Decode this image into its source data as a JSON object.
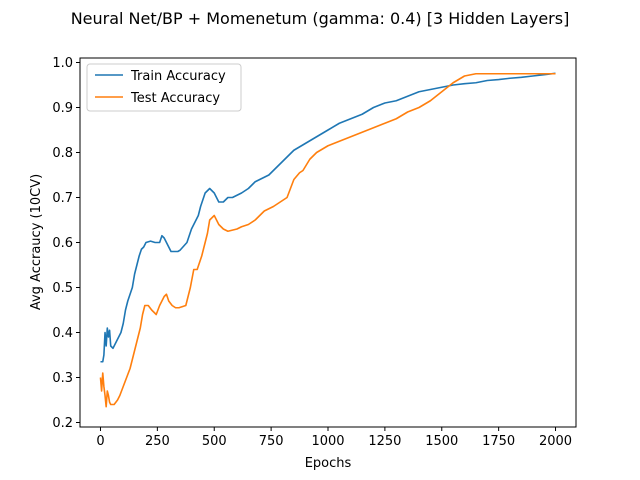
{
  "chart_data": {
    "type": "line",
    "title": "Neural Net/BP + Momenetum (gamma: 0.4) [3 Hidden Layers]",
    "xlabel": "Epochs",
    "ylabel": "Avg Accrаucy (10CV)",
    "xlim": [
      -90,
      2090
    ],
    "ylim": [
      0.19,
      1.01
    ],
    "xticks": [
      0,
      250,
      500,
      750,
      1000,
      1250,
      1500,
      1750,
      2000
    ],
    "xtick_labels": [
      "0",
      "250",
      "500",
      "750",
      "1000",
      "1250",
      "1500",
      "1750",
      "2000"
    ],
    "yticks": [
      0.2,
      0.3,
      0.4,
      0.5,
      0.6,
      0.7,
      0.8,
      0.9,
      1.0
    ],
    "ytick_labels": [
      "0.2",
      "0.3",
      "0.4",
      "0.5",
      "0.6",
      "0.7",
      "0.8",
      "0.9",
      "1.0"
    ],
    "grid": false,
    "legend_position": "top-left",
    "series": [
      {
        "name": "Train Accuracy",
        "color": "#1f77b4",
        "x": [
          0,
          10,
          15,
          20,
          25,
          30,
          35,
          40,
          45,
          55,
          70,
          90,
          100,
          110,
          120,
          140,
          150,
          170,
          180,
          190,
          200,
          220,
          240,
          260,
          270,
          280,
          290,
          300,
          310,
          320,
          330,
          340,
          350,
          380,
          400,
          420,
          430,
          440,
          460,
          480,
          490,
          500,
          510,
          520,
          540,
          560,
          580,
          600,
          620,
          650,
          680,
          700,
          720,
          740,
          760,
          780,
          800,
          850,
          900,
          950,
          1000,
          1050,
          1100,
          1150,
          1200,
          1250,
          1300,
          1350,
          1400,
          1450,
          1500,
          1550,
          1600,
          1650,
          1700,
          1750,
          1800,
          1850,
          1900,
          1950,
          2000
        ],
        "y": [
          0.335,
          0.335,
          0.35,
          0.4,
          0.37,
          0.41,
          0.39,
          0.405,
          0.37,
          0.365,
          0.38,
          0.4,
          0.42,
          0.45,
          0.47,
          0.5,
          0.53,
          0.57,
          0.585,
          0.59,
          0.6,
          0.603,
          0.6,
          0.6,
          0.615,
          0.61,
          0.6,
          0.59,
          0.58,
          0.58,
          0.58,
          0.58,
          0.583,
          0.6,
          0.63,
          0.65,
          0.66,
          0.68,
          0.71,
          0.72,
          0.715,
          0.71,
          0.7,
          0.69,
          0.69,
          0.7,
          0.7,
          0.705,
          0.71,
          0.72,
          0.735,
          0.74,
          0.745,
          0.75,
          0.76,
          0.77,
          0.78,
          0.805,
          0.82,
          0.835,
          0.85,
          0.865,
          0.875,
          0.885,
          0.9,
          0.91,
          0.915,
          0.925,
          0.935,
          0.94,
          0.945,
          0.95,
          0.953,
          0.955,
          0.96,
          0.962,
          0.965,
          0.967,
          0.97,
          0.973,
          0.976
        ]
      },
      {
        "name": "Test Accuracy",
        "color": "#ff7f0e",
        "x": [
          0,
          5,
          10,
          15,
          20,
          25,
          30,
          35,
          40,
          45,
          50,
          60,
          75,
          85,
          100,
          115,
          130,
          145,
          160,
          175,
          185,
          195,
          210,
          225,
          245,
          260,
          270,
          280,
          290,
          300,
          315,
          330,
          345,
          375,
          395,
          410,
          425,
          445,
          460,
          470,
          480,
          500,
          520,
          540,
          560,
          600,
          620,
          650,
          680,
          720,
          760,
          790,
          820,
          850,
          875,
          890,
          920,
          950,
          1000,
          1050,
          1100,
          1150,
          1200,
          1250,
          1300,
          1350,
          1400,
          1450,
          1500,
          1550,
          1600,
          1650,
          1700,
          1750,
          1800,
          1850,
          1900,
          1950,
          2000
        ],
        "y": [
          0.3,
          0.27,
          0.31,
          0.28,
          0.26,
          0.235,
          0.27,
          0.26,
          0.245,
          0.24,
          0.24,
          0.24,
          0.25,
          0.26,
          0.28,
          0.3,
          0.32,
          0.35,
          0.38,
          0.41,
          0.44,
          0.46,
          0.46,
          0.45,
          0.44,
          0.46,
          0.47,
          0.48,
          0.485,
          0.47,
          0.46,
          0.455,
          0.455,
          0.46,
          0.5,
          0.54,
          0.54,
          0.57,
          0.6,
          0.62,
          0.65,
          0.66,
          0.64,
          0.63,
          0.625,
          0.63,
          0.635,
          0.64,
          0.65,
          0.67,
          0.68,
          0.69,
          0.7,
          0.74,
          0.755,
          0.76,
          0.785,
          0.8,
          0.815,
          0.825,
          0.835,
          0.845,
          0.855,
          0.865,
          0.875,
          0.89,
          0.9,
          0.915,
          0.935,
          0.955,
          0.97,
          0.975,
          0.975,
          0.975,
          0.975,
          0.975,
          0.975,
          0.975,
          0.975
        ]
      }
    ]
  }
}
